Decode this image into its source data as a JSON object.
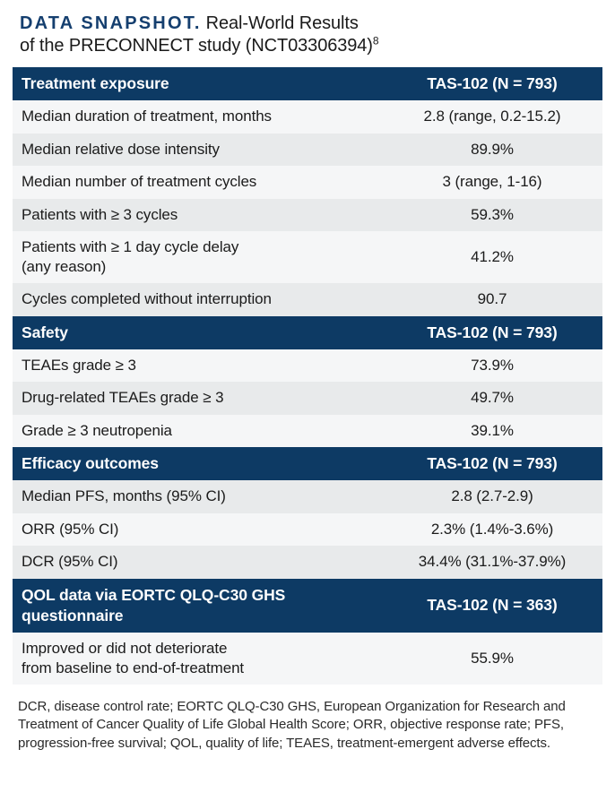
{
  "title": {
    "accent": "DATA SNAPSHOT.",
    "rest": "Real-World Results\nof the PRECONNECT study (NCT03306394)",
    "superscript": "8"
  },
  "colors": {
    "header_bg": "#0d3a64",
    "title_accent": "#153f6f",
    "row_light": "#f5f6f7",
    "row_dark": "#e8eaeb",
    "header_text": "#ffffff",
    "body_text": "#1b1b1b"
  },
  "table": {
    "sections": [
      {
        "header": {
          "label": "Treatment exposure",
          "value": "TAS-102 (N = 793)"
        },
        "rows": [
          {
            "label": "Median duration of treatment, months",
            "value": "2.8 (range, 0.2-15.2)"
          },
          {
            "label": "Median relative dose intensity",
            "value": "89.9%"
          },
          {
            "label": "Median number of treatment cycles",
            "value": "3 (range, 1-16)"
          },
          {
            "label": "Patients with ≥ 3 cycles",
            "value": "59.3%"
          },
          {
            "label": "Patients with ≥ 1 day cycle delay\n(any reason)",
            "value": "41.2%"
          },
          {
            "label": "Cycles completed without interruption",
            "value": "90.7"
          }
        ]
      },
      {
        "header": {
          "label": "Safety",
          "value": "TAS-102 (N = 793)"
        },
        "rows": [
          {
            "label": "TEAEs grade ≥ 3",
            "value": "73.9%"
          },
          {
            "label": "Drug-related TEAEs grade ≥ 3",
            "value": "49.7%"
          },
          {
            "label": "Grade ≥ 3 neutropenia",
            "value": "39.1%"
          }
        ]
      },
      {
        "header": {
          "label": "Efficacy outcomes",
          "value": "TAS-102 (N = 793)"
        },
        "rows": [
          {
            "label": "Median PFS, months (95% CI)",
            "value": "2.8 (2.7-2.9)"
          },
          {
            "label": "ORR (95% CI)",
            "value": "2.3% (1.4%-3.6%)"
          },
          {
            "label": "DCR (95% CI)",
            "value": "34.4% (31.1%-37.9%)"
          }
        ]
      },
      {
        "header": {
          "label": "QOL data via EORTC QLQ-C30 GHS\nquestionnaire",
          "value": "TAS-102 (N = 363)"
        },
        "rows": [
          {
            "label": "Improved or did not deteriorate\nfrom baseline to end-of-treatment",
            "value": "55.9%"
          }
        ]
      }
    ]
  },
  "footnote": "DCR, disease control rate; EORTC QLQ-C30 GHS, European Organization for Research and Treatment of Cancer Quality of Life Global Health Score; ORR, objective response rate; PFS, progression-free survival; QOL, quality of life; TEAES, treatment-emergent adverse effects."
}
